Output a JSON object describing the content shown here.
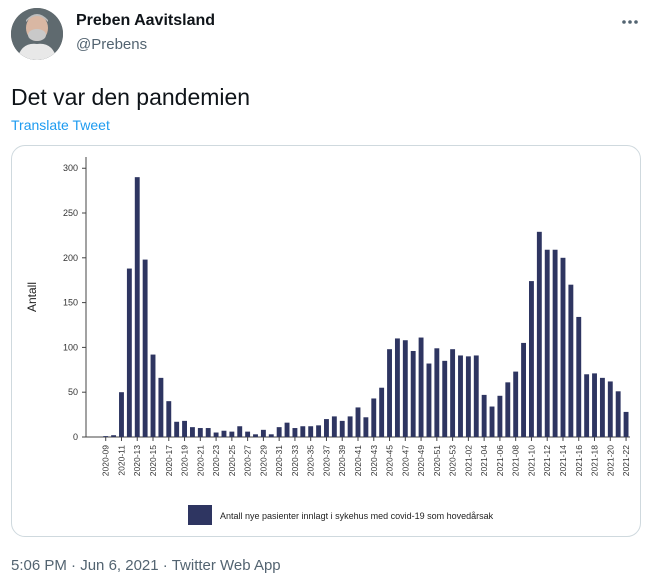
{
  "tweet": {
    "author_name": "Preben Aavitsland",
    "author_handle": "@Prebens",
    "more_icon": "more-dots-icon",
    "text": "Det var den pandemien",
    "translate_label": "Translate Tweet",
    "time": "5:06 PM",
    "sep": " · ",
    "date": "Jun 6, 2021",
    "source": "Twitter Web App",
    "link_color": "#1d9bf0"
  },
  "chart_data": {
    "type": "bar",
    "ylabel": "Antall",
    "ylim": [
      0,
      300
    ],
    "yticks": [
      0,
      50,
      100,
      150,
      200,
      250,
      300
    ],
    "legend_label": "Antall nye pasienter innlagt i sykehus med covid-19 som hovedårsak",
    "bar_color": "#2e3561",
    "x_tick_labels": [
      "2020-09",
      "2020-11",
      "2020-13",
      "2020-15",
      "2020-17",
      "2020-19",
      "2020-21",
      "2020-23",
      "2020-25",
      "2020-27",
      "2020-29",
      "2020-31",
      "2020-33",
      "2020-35",
      "2020-37",
      "2020-39",
      "2020-41",
      "2020-43",
      "2020-45",
      "2020-47",
      "2020-49",
      "2020-51",
      "2020-53",
      "2021-02",
      "2021-04",
      "2021-06",
      "2021-08",
      "2021-10",
      "2021-12",
      "2021-14",
      "2021-16",
      "2021-18",
      "2021-20",
      "2021-22"
    ],
    "x_tick_values": [
      2,
      4,
      6,
      8,
      10,
      12,
      14,
      16,
      18,
      20,
      22,
      24,
      26,
      28,
      30,
      32,
      34,
      36,
      38,
      40,
      42,
      44,
      46,
      48,
      50,
      52,
      54,
      56,
      58,
      60,
      62,
      64,
      66,
      68
    ],
    "values": [
      0,
      0,
      1,
      2,
      50,
      188,
      290,
      198,
      92,
      66,
      40,
      17,
      18,
      11,
      10,
      10,
      5,
      7,
      6,
      12,
      6,
      3,
      8,
      3,
      11,
      16,
      10,
      12,
      12,
      13,
      20,
      23,
      18,
      23,
      33,
      22,
      43,
      55,
      98,
      110,
      108,
      96,
      111,
      82,
      99,
      85,
      98,
      91,
      90,
      91,
      47,
      34,
      46,
      61,
      73,
      105,
      174,
      229,
      209,
      209,
      200,
      170,
      134,
      70,
      71,
      66,
      62,
      51,
      28
    ]
  }
}
